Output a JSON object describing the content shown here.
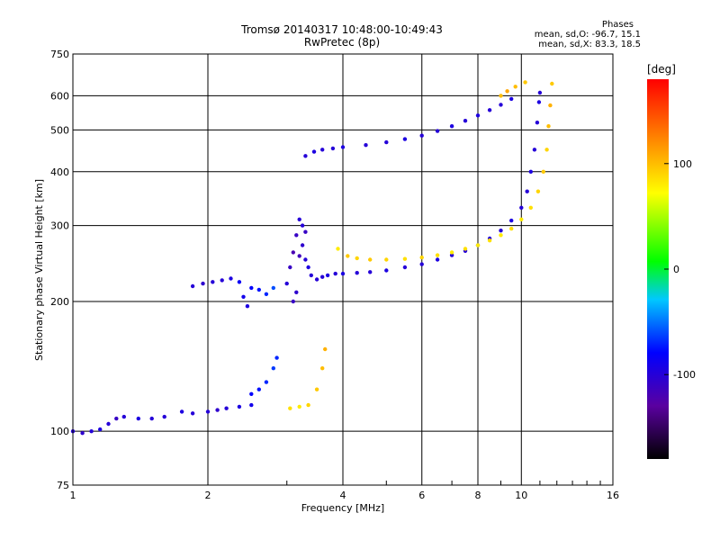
{
  "header": {
    "title_line1": "Tromsø 20140317 10:48:00-10:49:43",
    "title_line2": "RwPretec (8p)"
  },
  "phases_box": {
    "heading": "Phases",
    "line_o": "mean, sd,O: -96.7, 15.1",
    "line_x": "mean, sd,X: 83.3, 18.5"
  },
  "colorbar": {
    "unit_label": "[deg]",
    "ticks": [
      "100",
      "0",
      "-100"
    ],
    "tick_values": [
      100,
      0,
      -100
    ],
    "range": [
      -180,
      180
    ],
    "colormap": "rainbow"
  },
  "chart_data": {
    "type": "scatter",
    "title": "Tromsø 20140317 10:48:00-10:49:43",
    "subtitle": "RwPretec (8p)",
    "xlabel": "Frequency [MHz]",
    "ylabel": "Stationary phase Virtual Height [km]",
    "x_scale": "log",
    "y_scale": "log",
    "xlim": [
      1,
      16
    ],
    "ylim": [
      75,
      750
    ],
    "x_ticks": [
      1,
      2,
      4,
      6,
      8,
      10,
      16
    ],
    "x_tick_labels": [
      "1",
      "2",
      "4",
      "6",
      "8",
      "10",
      "16"
    ],
    "y_ticks": [
      75,
      100,
      200,
      300,
      400,
      500,
      600,
      750
    ],
    "y_tick_labels": [
      "75",
      "100",
      "200",
      "300",
      "400",
      "500",
      "600",
      "750"
    ],
    "grid": true,
    "color_by": "phase [deg]",
    "series": [
      {
        "name": "O-mode",
        "points": [
          [
            1.0,
            100,
            -100
          ],
          [
            1.05,
            99,
            -105
          ],
          [
            1.1,
            100,
            -100
          ],
          [
            1.15,
            101,
            -95
          ],
          [
            1.2,
            104,
            -100
          ],
          [
            1.25,
            107,
            -110
          ],
          [
            1.3,
            108,
            -100
          ],
          [
            1.4,
            107,
            -95
          ],
          [
            1.5,
            107,
            -100
          ],
          [
            1.6,
            108,
            -100
          ],
          [
            1.75,
            111,
            -95
          ],
          [
            1.85,
            110,
            -100
          ],
          [
            2.0,
            111,
            -100
          ],
          [
            2.1,
            112,
            -105
          ],
          [
            2.2,
            113,
            -100
          ],
          [
            2.35,
            114,
            -95
          ],
          [
            2.5,
            115,
            -90
          ],
          [
            1.85,
            217,
            -100
          ],
          [
            1.95,
            220,
            -105
          ],
          [
            2.05,
            222,
            -100
          ],
          [
            2.15,
            224,
            -100
          ],
          [
            2.25,
            226,
            -95
          ],
          [
            2.35,
            222,
            -85
          ],
          [
            2.4,
            205,
            -90
          ],
          [
            2.45,
            195,
            -95
          ],
          [
            2.5,
            215,
            -80
          ],
          [
            2.6,
            213,
            -75
          ],
          [
            2.7,
            208,
            -70
          ],
          [
            2.8,
            215,
            -60
          ],
          [
            3.0,
            220,
            -100
          ],
          [
            3.05,
            240,
            -110
          ],
          [
            3.1,
            260,
            -120
          ],
          [
            3.15,
            285,
            -110
          ],
          [
            3.2,
            310,
            -100
          ],
          [
            3.25,
            270,
            -105
          ],
          [
            3.3,
            250,
            -100
          ],
          [
            3.35,
            240,
            -95
          ],
          [
            3.4,
            230,
            -100
          ],
          [
            3.5,
            225,
            -100
          ],
          [
            3.6,
            228,
            -100
          ],
          [
            3.7,
            230,
            -95
          ],
          [
            3.85,
            232,
            -100
          ],
          [
            4.0,
            232,
            -95
          ],
          [
            4.3,
            233,
            -100
          ],
          [
            4.6,
            234,
            -100
          ],
          [
            5.0,
            236,
            -95
          ],
          [
            5.5,
            240,
            -100
          ],
          [
            6.0,
            244,
            -100
          ],
          [
            6.5,
            250,
            -95
          ],
          [
            7.0,
            256,
            -100
          ],
          [
            7.5,
            262,
            -100
          ],
          [
            8.0,
            270,
            -95
          ],
          [
            8.5,
            280,
            -100
          ],
          [
            9.0,
            292,
            -100
          ],
          [
            9.5,
            308,
            -95
          ],
          [
            10.0,
            330,
            -100
          ],
          [
            10.3,
            360,
            -100
          ],
          [
            10.5,
            400,
            -95
          ],
          [
            10.7,
            450,
            -100
          ],
          [
            10.85,
            520,
            -100
          ],
          [
            10.95,
            580,
            -95
          ],
          [
            11.0,
            610,
            -100
          ],
          [
            3.1,
            200,
            -110
          ],
          [
            3.15,
            210,
            -105
          ],
          [
            3.2,
            255,
            -115
          ],
          [
            3.25,
            300,
            -100
          ],
          [
            3.3,
            290,
            -110
          ],
          [
            3.3,
            435,
            -100
          ],
          [
            3.45,
            445,
            -95
          ],
          [
            3.6,
            450,
            -100
          ],
          [
            3.8,
            453,
            -100
          ],
          [
            4.0,
            456,
            -95
          ],
          [
            4.5,
            461,
            -100
          ],
          [
            5.0,
            468,
            -100
          ],
          [
            5.5,
            476,
            -95
          ],
          [
            6.0,
            485,
            -100
          ],
          [
            6.5,
            497,
            -100
          ],
          [
            7.0,
            510,
            -95
          ],
          [
            7.5,
            525,
            -100
          ],
          [
            8.0,
            540,
            -95
          ],
          [
            8.5,
            556,
            -100
          ],
          [
            9.0,
            572,
            -100
          ],
          [
            9.5,
            590,
            -95
          ],
          [
            2.5,
            122,
            -80
          ],
          [
            2.6,
            125,
            -75
          ],
          [
            2.7,
            130,
            -70
          ],
          [
            2.8,
            140,
            -65
          ],
          [
            2.85,
            148,
            -70
          ]
        ]
      },
      {
        "name": "X-mode",
        "points": [
          [
            3.9,
            265,
            80
          ],
          [
            4.1,
            255,
            95
          ],
          [
            4.3,
            252,
            90
          ],
          [
            4.6,
            250,
            95
          ],
          [
            5.0,
            250,
            90
          ],
          [
            5.5,
            251,
            85
          ],
          [
            6.0,
            253,
            90
          ],
          [
            6.5,
            256,
            85
          ],
          [
            7.0,
            260,
            80
          ],
          [
            7.5,
            265,
            85
          ],
          [
            8.0,
            270,
            80
          ],
          [
            8.5,
            277,
            85
          ],
          [
            9.0,
            285,
            80
          ],
          [
            9.5,
            295,
            85
          ],
          [
            10.0,
            310,
            80
          ],
          [
            10.5,
            330,
            85
          ],
          [
            10.9,
            360,
            90
          ],
          [
            11.2,
            400,
            95
          ],
          [
            11.4,
            450,
            90
          ],
          [
            11.5,
            510,
            100
          ],
          [
            11.6,
            570,
            105
          ],
          [
            11.7,
            640,
            95
          ],
          [
            3.05,
            113,
            85
          ],
          [
            3.2,
            114,
            80
          ],
          [
            3.35,
            115,
            90
          ],
          [
            3.5,
            125,
            95
          ],
          [
            3.6,
            140,
            100
          ],
          [
            3.65,
            155,
            105
          ],
          [
            9.0,
            600,
            100
          ],
          [
            9.3,
            615,
            110
          ],
          [
            9.7,
            630,
            100
          ],
          [
            10.2,
            645,
            95
          ]
        ]
      }
    ],
    "colorbar_label": "[deg]"
  }
}
